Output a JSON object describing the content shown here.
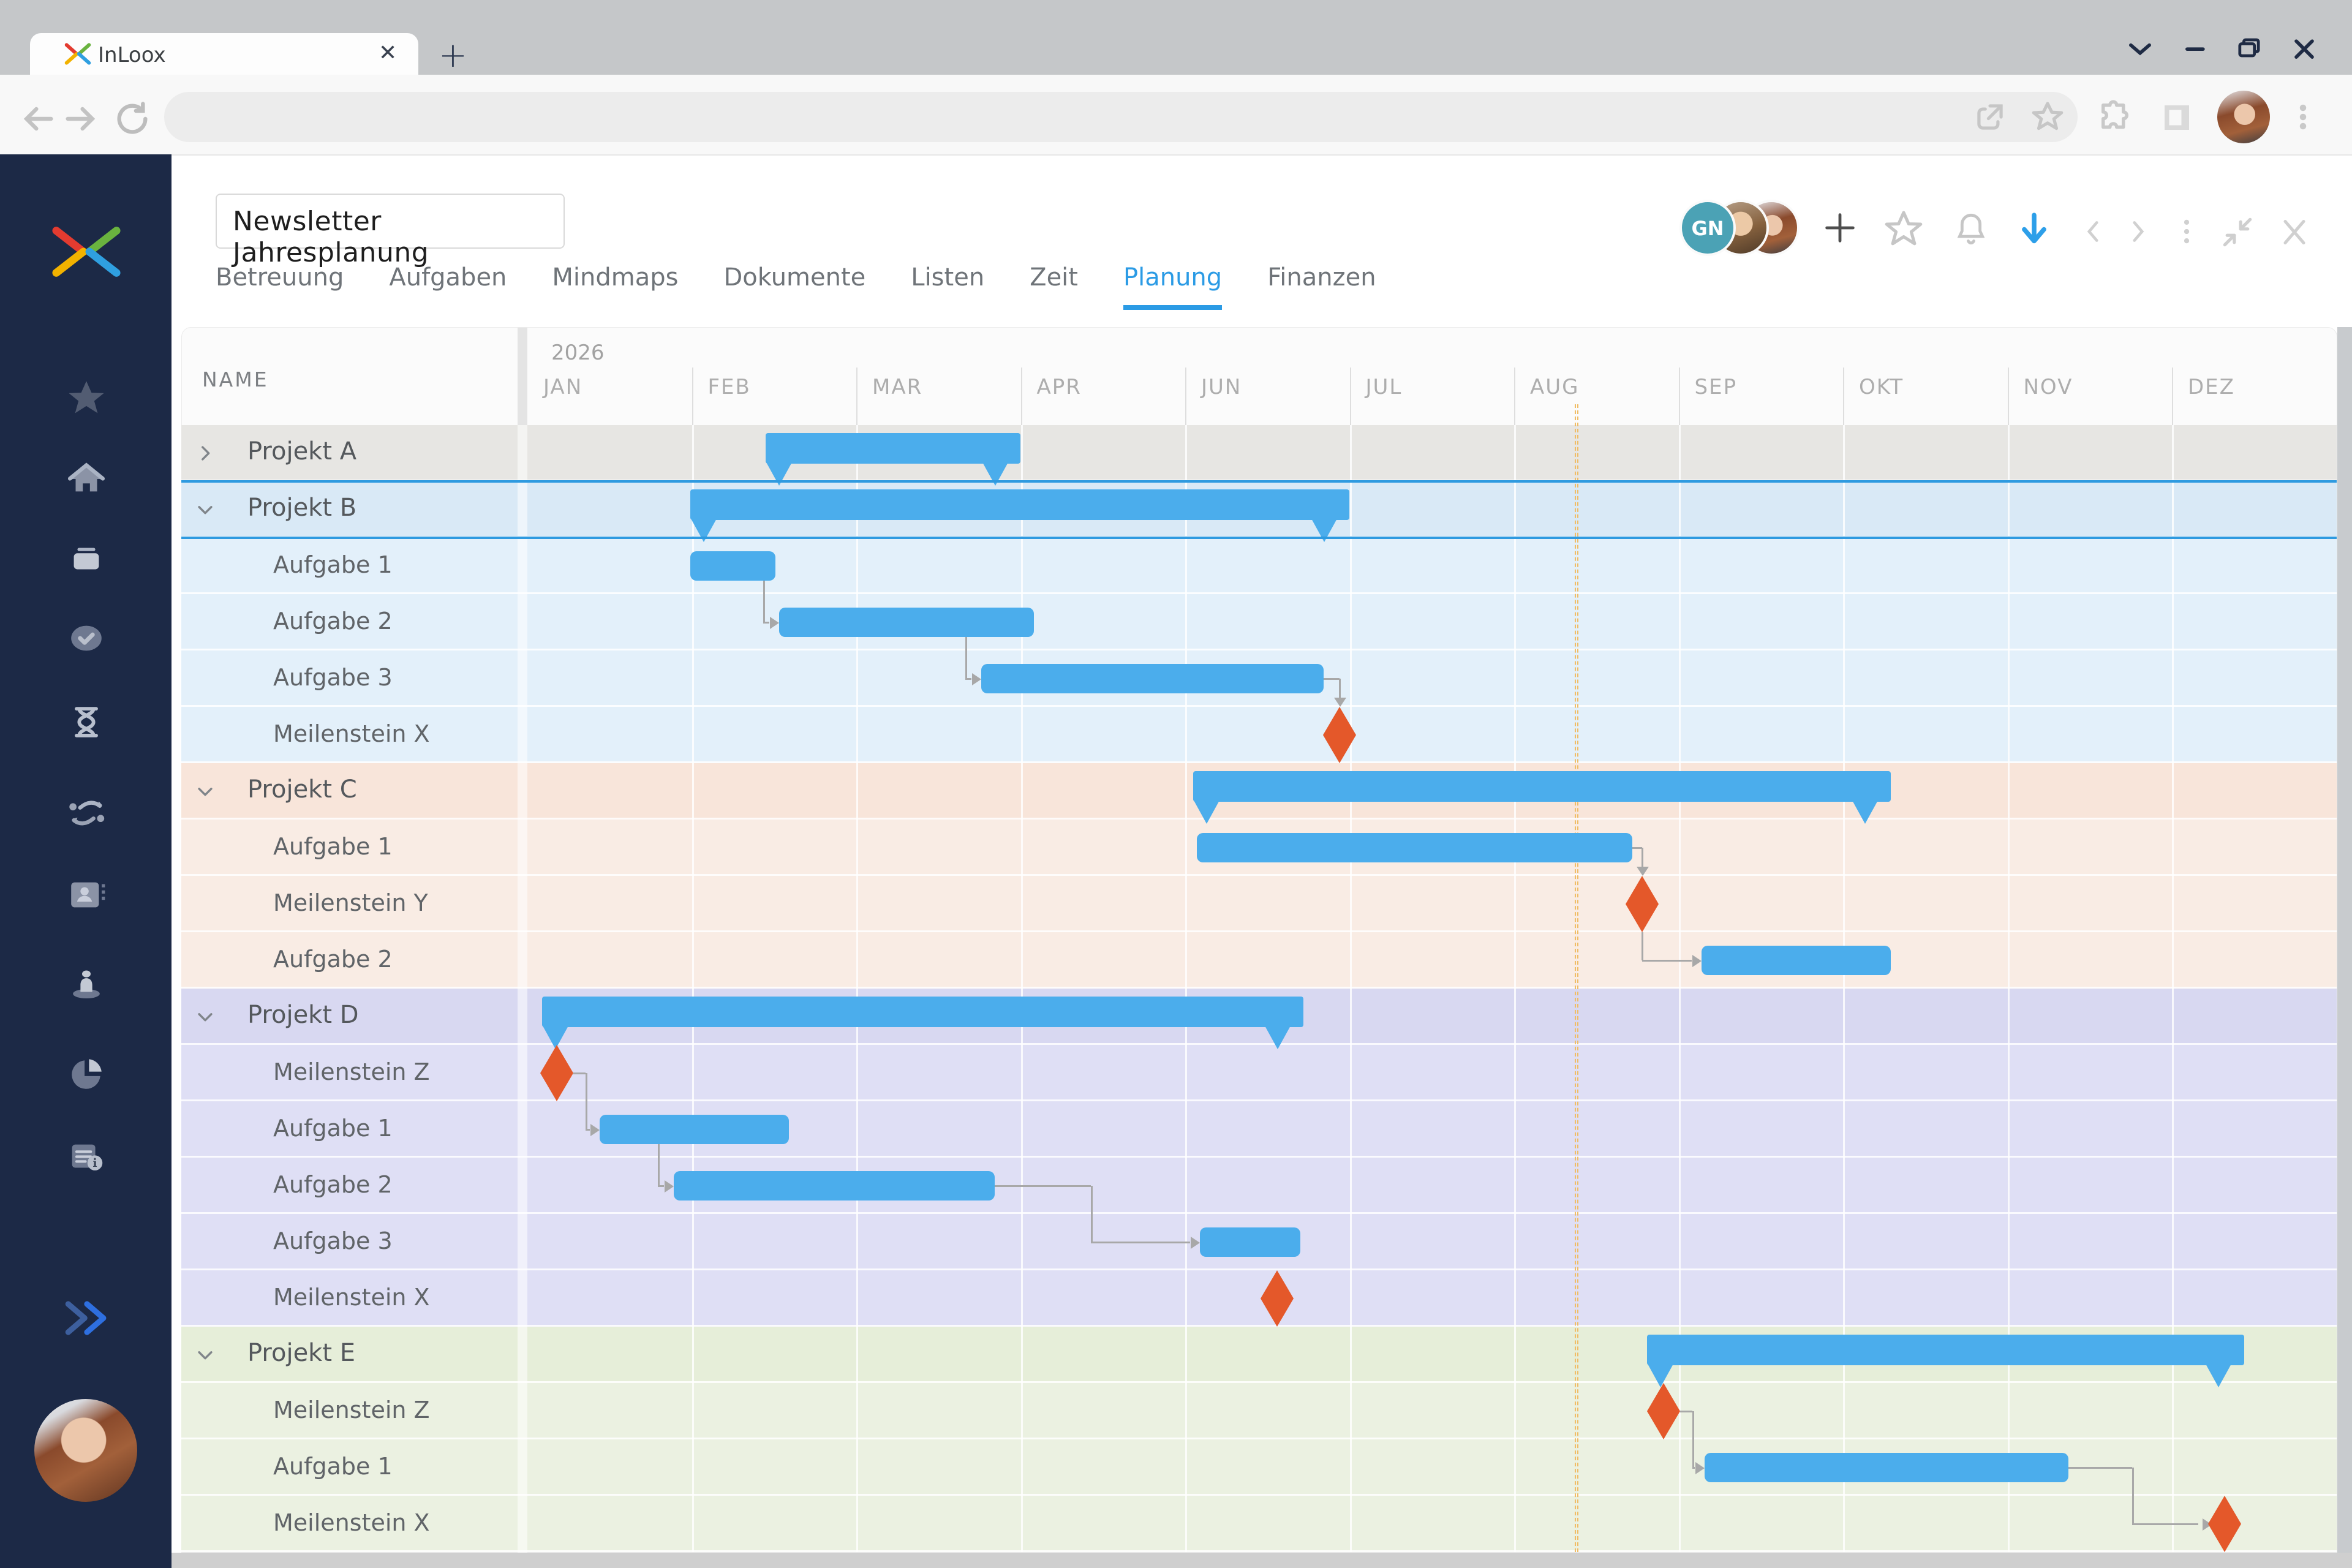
{
  "browser": {
    "tab_title": "InLoox",
    "tab_close": "✕",
    "new_tab": "+",
    "address_value": "",
    "window_controls": [
      "window-menu-chevron",
      "minimize",
      "restore",
      "close"
    ],
    "toolbar_icons": [
      "back",
      "forward",
      "reload",
      "share",
      "bookmark-star",
      "extensions-puzzle",
      "side-panel",
      "profile-avatar",
      "kebab-menu"
    ]
  },
  "sidebar": {
    "logo": "inloox-x-logo",
    "items": [
      "favorites-star",
      "home",
      "projects-box",
      "tasks-check",
      "time-hourglass",
      "workflow-route",
      "contacts-card",
      "resources-person",
      "reports-pie",
      "notes-info"
    ],
    "expand": "double-chevron-right",
    "user": "user-photo-avatar"
  },
  "header": {
    "project_title": "Newsletter Jahresplanung",
    "tabs": [
      {
        "label": "Betreuung",
        "active": false
      },
      {
        "label": "Aufgaben",
        "active": false
      },
      {
        "label": "Mindmaps",
        "active": false
      },
      {
        "label": "Dokumente",
        "active": false
      },
      {
        "label": "Listen",
        "active": false
      },
      {
        "label": "Zeit",
        "active": false
      },
      {
        "label": "Planung",
        "active": true
      },
      {
        "label": "Finanzen",
        "active": false
      }
    ],
    "avatars": [
      {
        "initials": "GN"
      },
      {
        "photo": "man"
      },
      {
        "photo": "woman"
      }
    ],
    "action_icons": [
      "add-plus",
      "favorite-star",
      "notifications-bell",
      "download-arrow-blue",
      "chevron-left",
      "chevron-right",
      "kebab-menu",
      "collapse-window",
      "close-x"
    ],
    "accent_color": "#2b9be5"
  },
  "chart_data": {
    "type": "gantt",
    "title": "Newsletter Jahresplanung",
    "year_label": "2026",
    "name_header": "NAME",
    "months": [
      "JAN",
      "FEB",
      "MAR",
      "APR",
      "JUN",
      "JUL",
      "AUG",
      "SEP",
      "OKT",
      "NOV",
      "DEZ"
    ],
    "today_month_position": 6.38,
    "axis_note": "bar start/end are in month-column units, 0 = left edge of JAN column",
    "rows": [
      {
        "label": "Projekt A",
        "type": "project",
        "group": "A",
        "collapsed": true,
        "bar": [
          1.45,
          3.0
        ]
      },
      {
        "label": "Projekt B",
        "type": "project",
        "group": "B",
        "collapsed": false,
        "selected": true,
        "bar": [
          0.99,
          5.0
        ]
      },
      {
        "label": "Aufgabe 1",
        "type": "task",
        "group": "B",
        "bar": [
          0.99,
          1.51
        ]
      },
      {
        "label": "Aufgabe 2",
        "type": "task",
        "group": "B",
        "bar": [
          1.53,
          3.08
        ]
      },
      {
        "label": "Aufgabe 3",
        "type": "task",
        "group": "B",
        "bar": [
          2.76,
          4.84
        ]
      },
      {
        "label": "Meilenstein X",
        "type": "milestone",
        "group": "B",
        "at": 4.94
      },
      {
        "label": "Projekt C",
        "type": "project",
        "group": "C",
        "collapsed": false,
        "bar": [
          4.05,
          8.29
        ]
      },
      {
        "label": "Aufgabe 1",
        "type": "task",
        "group": "C",
        "bar": [
          4.07,
          6.72
        ]
      },
      {
        "label": "Meilenstein Y",
        "type": "milestone",
        "group": "C",
        "at": 6.78
      },
      {
        "label": "Aufgabe 2",
        "type": "task",
        "group": "C",
        "bar": [
          7.14,
          8.29
        ]
      },
      {
        "label": "Projekt D",
        "type": "project",
        "group": "D",
        "collapsed": false,
        "bar": [
          0.09,
          4.72
        ]
      },
      {
        "label": "Meilenstein Z",
        "type": "milestone",
        "group": "D",
        "at": 0.18
      },
      {
        "label": "Aufgabe 1",
        "type": "task",
        "group": "D",
        "bar": [
          0.44,
          1.59
        ]
      },
      {
        "label": "Aufgabe 2",
        "type": "task",
        "group": "D",
        "bar": [
          0.89,
          2.84
        ]
      },
      {
        "label": "Aufgabe 3",
        "type": "task",
        "group": "D",
        "bar": [
          4.09,
          4.7
        ]
      },
      {
        "label": "Meilenstein X",
        "type": "milestone",
        "group": "D",
        "at": 4.56
      },
      {
        "label": "Projekt E",
        "type": "project",
        "group": "E",
        "collapsed": false,
        "bar": [
          6.81,
          10.44
        ]
      },
      {
        "label": "Meilenstein Z",
        "type": "milestone",
        "group": "E",
        "at": 6.91
      },
      {
        "label": "Aufgabe 1",
        "type": "task",
        "group": "E",
        "bar": [
          7.16,
          9.37
        ]
      },
      {
        "label": "Meilenstein X",
        "type": "milestone",
        "group": "E",
        "at": 10.32
      }
    ],
    "connectors": [
      {
        "from": 2,
        "to": 3,
        "mode": "hv"
      },
      {
        "from": 3,
        "to": 4,
        "mode": "hv"
      },
      {
        "from": 4,
        "to": 5,
        "mode": "drop"
      },
      {
        "from": 7,
        "to": 8,
        "mode": "drop"
      },
      {
        "from": 8,
        "to": 9,
        "mode": "fromBottom"
      },
      {
        "from": 11,
        "to": 12,
        "mode": "fromRight"
      },
      {
        "from": 12,
        "to": 13,
        "mode": "hv"
      },
      {
        "from": 13,
        "to": 14,
        "mode": "hv"
      },
      {
        "from": 17,
        "to": 18,
        "mode": "fromRight"
      },
      {
        "from": 18,
        "to": 19,
        "mode": "hv"
      }
    ],
    "group_colors": {
      "A": {
        "head": "#e7e6e3",
        "row": "#eceae8"
      },
      "B": {
        "head": "#d9e9f6",
        "row": "#e3f0fa"
      },
      "C": {
        "head": "#f8e5da",
        "row": "#f9ece4"
      },
      "D": {
        "head": "#d8d8f1",
        "row": "#dfdff5"
      },
      "E": {
        "head": "#e6eed9",
        "row": "#ebf1e1"
      }
    },
    "colors": {
      "bar": "#4badec",
      "milestone": "#e4582a",
      "connector": "#a8a8a8",
      "today": "#f0bd66",
      "selection": "#2e9ae0"
    }
  }
}
